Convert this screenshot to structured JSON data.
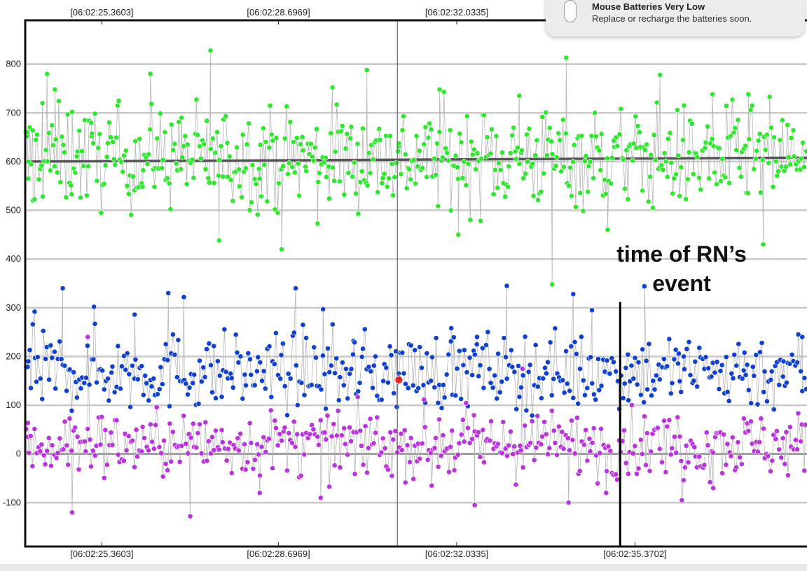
{
  "notification": {
    "title": "Mouse Batteries Very Low",
    "body": "Replace or recharge the batteries soon.",
    "icon": "mouse-icon"
  },
  "annotation": {
    "line1": "time of RN’s",
    "line2": "event"
  },
  "chart_data": {
    "type": "scatter",
    "title": "",
    "xlabel": "",
    "ylabel": "",
    "ylim": [
      -190,
      890
    ],
    "xlim": [
      0,
      1000
    ],
    "grid": true,
    "y_ticks": [
      -100,
      0,
      100,
      200,
      300,
      400,
      500,
      600,
      700,
      800
    ],
    "top_ticks": [
      {
        "x": 98,
        "label": "[06:02:25.3603]"
      },
      {
        "x": 324,
        "label": "[06:02:28.6969]"
      },
      {
        "x": 552,
        "label": "[06:02:32.0335]"
      }
    ],
    "bottom_ticks": [
      {
        "x": 98,
        "label": "[06:02:25.3603]"
      },
      {
        "x": 324,
        "label": "[06:02:28.6969]"
      },
      {
        "x": 552,
        "label": "[06:02:32.0335]"
      },
      {
        "x": 780,
        "label": "[06:02:35.3702]"
      }
    ],
    "cursor_x": 476,
    "event_x": 761,
    "highlight_point": {
      "x": 478,
      "y": 152,
      "color": "#e8251f"
    },
    "colors": {
      "green": "#2ee82e",
      "blue": "#1040d0",
      "purple": "#bb33dd",
      "trend": "#555555"
    },
    "series": [
      {
        "color": "green",
        "count": 540,
        "x_range": [
          0,
          1000
        ],
        "y_center": 608,
        "y_spread": 92,
        "points_sample": [
          [
            2,
            652
          ],
          [
            4,
            565
          ],
          [
            10,
            520
          ],
          [
            22,
            720
          ],
          [
            28,
            780
          ],
          [
            38,
            748
          ],
          [
            60,
            702
          ],
          [
            85,
            652
          ],
          [
            118,
            715
          ],
          [
            150,
            548
          ],
          [
            160,
            780
          ],
          [
            200,
            690
          ],
          [
            237,
            828
          ],
          [
            248,
            438
          ],
          [
            300,
            565
          ],
          [
            328,
            420
          ],
          [
            374,
            473
          ],
          [
            393,
            752
          ],
          [
            437,
            788
          ],
          [
            478,
            637
          ],
          [
            530,
            748
          ],
          [
            554,
            450
          ],
          [
            632,
            735
          ],
          [
            674,
            348
          ],
          [
            692,
            813
          ],
          [
            745,
            460
          ],
          [
            812,
            778
          ],
          [
            879,
            738
          ],
          [
            925,
            738
          ],
          [
            944,
            430
          ]
        ]
      },
      {
        "color": "blue",
        "count": 440,
        "x_range": [
          0,
          1000
        ],
        "y_center": 170,
        "y_spread": 70,
        "points_sample": [
          [
            4,
            190
          ],
          [
            12,
            292
          ],
          [
            48,
            340
          ],
          [
            88,
            302
          ],
          [
            140,
            286
          ],
          [
            183,
            330
          ],
          [
            203,
            322
          ],
          [
            346,
            340
          ],
          [
            381,
            297
          ],
          [
            420,
            232
          ],
          [
            478,
            157
          ],
          [
            545,
            258
          ],
          [
            578,
            240
          ],
          [
            616,
            345
          ],
          [
            701,
            328
          ],
          [
            725,
            295
          ],
          [
            771,
            204
          ],
          [
            792,
            344
          ],
          [
            836,
            206
          ],
          [
            920,
            208
          ],
          [
            970,
            190
          ],
          [
            994,
            240
          ]
        ]
      },
      {
        "color": "purple",
        "count": 440,
        "x_range": [
          0,
          1000
        ],
        "y_center": 20,
        "y_spread": 60,
        "points_sample": [
          [
            4,
            35
          ],
          [
            60,
            -120
          ],
          [
            80,
            240
          ],
          [
            211,
            -128
          ],
          [
            300,
            -80
          ],
          [
            378,
            -90
          ],
          [
            420,
            45
          ],
          [
            520,
            -65
          ],
          [
            575,
            -105
          ],
          [
            636,
            175
          ],
          [
            695,
            -100
          ],
          [
            743,
            -80
          ],
          [
            840,
            -95
          ],
          [
            880,
            -70
          ]
        ]
      }
    ],
    "trend_line": {
      "color": "trend",
      "y_start": 600,
      "y_end": 608
    }
  }
}
